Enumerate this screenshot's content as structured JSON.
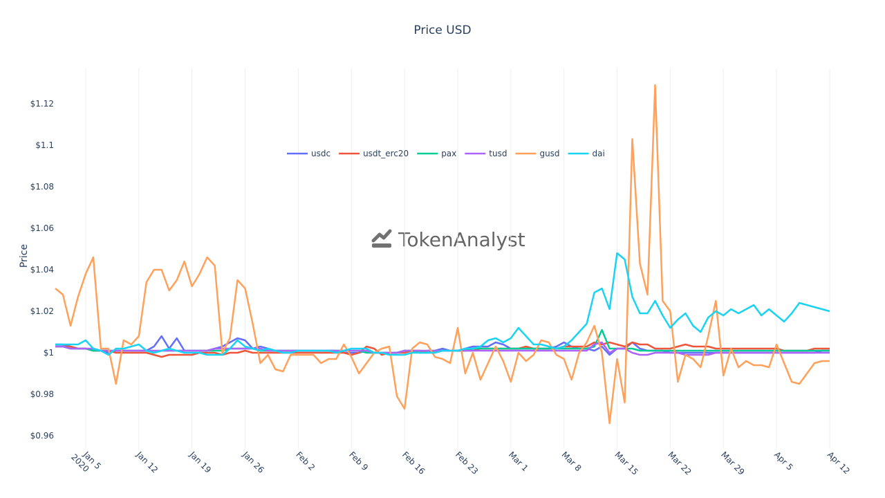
{
  "chart_data": {
    "type": "line",
    "title": "Price USD",
    "ylabel": "Price",
    "watermark": "TokenAnalyst",
    "x": [
      "2020-01-01",
      "2020-01-02",
      "2020-01-03",
      "2020-01-04",
      "2020-01-05",
      "2020-01-06",
      "2020-01-07",
      "2020-01-08",
      "2020-01-09",
      "2020-01-10",
      "2020-01-11",
      "2020-01-12",
      "2020-01-13",
      "2020-01-14",
      "2020-01-15",
      "2020-01-16",
      "2020-01-17",
      "2020-01-18",
      "2020-01-19",
      "2020-01-20",
      "2020-01-21",
      "2020-01-22",
      "2020-01-23",
      "2020-01-24",
      "2020-01-25",
      "2020-01-26",
      "2020-01-27",
      "2020-01-28",
      "2020-01-29",
      "2020-01-30",
      "2020-01-31",
      "2020-02-01",
      "2020-02-02",
      "2020-02-03",
      "2020-02-04",
      "2020-02-05",
      "2020-02-06",
      "2020-02-07",
      "2020-02-08",
      "2020-02-09",
      "2020-02-10",
      "2020-02-11",
      "2020-02-12",
      "2020-02-13",
      "2020-02-14",
      "2020-02-15",
      "2020-02-16",
      "2020-02-17",
      "2020-02-18",
      "2020-02-19",
      "2020-02-20",
      "2020-02-21",
      "2020-02-22",
      "2020-02-23",
      "2020-02-24",
      "2020-02-25",
      "2020-02-26",
      "2020-02-27",
      "2020-02-28",
      "2020-02-29",
      "2020-03-01",
      "2020-03-02",
      "2020-03-03",
      "2020-03-04",
      "2020-03-05",
      "2020-03-06",
      "2020-03-07",
      "2020-03-08",
      "2020-03-09",
      "2020-03-10",
      "2020-03-11",
      "2020-03-12",
      "2020-03-13",
      "2020-03-14",
      "2020-03-15",
      "2020-03-16",
      "2020-03-17",
      "2020-03-18",
      "2020-03-19",
      "2020-03-20",
      "2020-03-21",
      "2020-03-22",
      "2020-03-23",
      "2020-03-24",
      "2020-03-25",
      "2020-03-26",
      "2020-03-27",
      "2020-03-28",
      "2020-03-29",
      "2020-03-30",
      "2020-03-31",
      "2020-04-01",
      "2020-04-02",
      "2020-04-03",
      "2020-04-04",
      "2020-04-05",
      "2020-04-06",
      "2020-04-07",
      "2020-04-08",
      "2020-04-09",
      "2020-04-10",
      "2020-04-11",
      "2020-04-12"
    ],
    "series": [
      {
        "name": "usdc",
        "color": "#636efa",
        "values": [
          1.004,
          1.004,
          1.003,
          1.002,
          1.002,
          1.001,
          1.001,
          1.0,
          1.001,
          1.001,
          1.001,
          1.001,
          1.001,
          1.003,
          1.008,
          1.002,
          1.007,
          1.001,
          1.001,
          1.001,
          1.001,
          1.002,
          1.003,
          1.005,
          1.007,
          1.006,
          1.002,
          1.003,
          1.002,
          1.001,
          1.001,
          1.001,
          1.001,
          1.001,
          1.001,
          1.001,
          1.001,
          1.001,
          1.0,
          1.0,
          1.0,
          1.001,
          1.0,
          1.0,
          1.0,
          1.0,
          1.001,
          1.001,
          1.0,
          1.001,
          1.001,
          1.002,
          1.001,
          1.001,
          1.002,
          1.003,
          1.003,
          1.003,
          1.005,
          1.004,
          1.002,
          1.002,
          1.002,
          1.002,
          1.002,
          1.002,
          1.003,
          1.005,
          1.003,
          1.002,
          1.002,
          1.001,
          1.003,
          0.999,
          1.002,
          1.002,
          1.005,
          1.002,
          1.001,
          1.001,
          1.001,
          1.0,
          1.0,
          1.0,
          1.0,
          1.0,
          1.0,
          1.0,
          1.0,
          1.0,
          1.0,
          1.0,
          1.0,
          1.0,
          1.0,
          1.0,
          1.0,
          1.0,
          1.0,
          1.0,
          1.0,
          1.001,
          1.001
        ]
      },
      {
        "name": "usdt_erc20",
        "color": "#ef553b",
        "values": [
          1.003,
          1.003,
          1.003,
          1.002,
          1.002,
          1.001,
          1.001,
          1.001,
          1.0,
          1.0,
          1.0,
          1.0,
          1.0,
          0.999,
          0.998,
          0.999,
          0.999,
          0.999,
          0.999,
          1.0,
          1.0,
          1.0,
          0.999,
          1.0,
          1.0,
          1.001,
          1.0,
          1.0,
          1.0,
          1.0,
          1.0,
          1.0,
          1.0,
          1.0,
          1.0,
          1.0,
          1.0,
          1.0,
          1.0,
          0.999,
          1.0,
          1.003,
          1.002,
          0.999,
          1.0,
          1.0,
          1.0,
          1.001,
          1.001,
          1.0,
          1.0,
          1.001,
          1.001,
          1.001,
          1.001,
          1.001,
          1.002,
          1.002,
          1.002,
          1.002,
          1.002,
          1.002,
          1.003,
          1.002,
          1.002,
          1.002,
          1.002,
          1.003,
          1.003,
          1.003,
          1.003,
          1.005,
          1.004,
          1.005,
          1.004,
          1.003,
          1.005,
          1.004,
          1.004,
          1.002,
          1.002,
          1.002,
          1.003,
          1.004,
          1.003,
          1.003,
          1.003,
          1.002,
          1.002,
          1.002,
          1.002,
          1.002,
          1.002,
          1.002,
          1.002,
          1.002,
          1.001,
          1.001,
          1.001,
          1.001,
          1.002,
          1.002,
          1.002
        ]
      },
      {
        "name": "pax",
        "color": "#00cc96",
        "values": [
          1.003,
          1.003,
          1.002,
          1.002,
          1.002,
          1.001,
          1.001,
          1.001,
          1.001,
          1.001,
          1.001,
          1.001,
          1.001,
          1.0,
          1.001,
          1.001,
          1.001,
          1.001,
          1.001,
          1.001,
          1.001,
          1.001,
          1.001,
          1.002,
          1.002,
          1.002,
          1.002,
          1.001,
          1.001,
          1.001,
          1.001,
          1.001,
          1.001,
          1.001,
          1.001,
          1.001,
          1.001,
          1.001,
          1.001,
          1.001,
          1.001,
          1.0,
          1.0,
          1.0,
          1.0,
          1.0,
          1.001,
          1.001,
          1.0,
          1.0,
          1.001,
          1.001,
          1.001,
          1.001,
          1.001,
          1.002,
          1.002,
          1.002,
          1.002,
          1.002,
          1.002,
          1.002,
          1.002,
          1.002,
          1.002,
          1.002,
          1.002,
          1.002,
          1.002,
          1.002,
          1.002,
          1.003,
          1.011,
          1.002,
          1.002,
          1.002,
          1.002,
          1.001,
          1.001,
          1.001,
          1.001,
          1.001,
          1.001,
          1.001,
          1.001,
          1.001,
          1.001,
          1.001,
          1.001,
          1.001,
          1.001,
          1.001,
          1.001,
          1.001,
          1.001,
          1.001,
          1.001,
          1.001,
          1.001,
          1.001,
          1.001,
          1.001,
          1.001
        ]
      },
      {
        "name": "tusd",
        "color": "#ab63fa",
        "values": [
          1.003,
          1.003,
          1.002,
          1.002,
          1.002,
          1.002,
          1.001,
          1.001,
          1.001,
          1.001,
          1.001,
          1.001,
          1.001,
          1.001,
          1.001,
          1.001,
          1.001,
          1.001,
          1.001,
          1.001,
          1.001,
          1.002,
          1.002,
          1.002,
          1.002,
          1.002,
          1.002,
          1.002,
          1.001,
          1.001,
          1.001,
          1.001,
          1.001,
          1.001,
          1.001,
          1.001,
          1.001,
          1.001,
          1.001,
          1.001,
          1.001,
          1.001,
          1.0,
          1.0,
          1.0,
          1.0,
          1.001,
          1.001,
          1.001,
          1.001,
          1.001,
          1.001,
          1.001,
          1.001,
          1.001,
          1.001,
          1.001,
          1.001,
          1.001,
          1.001,
          1.001,
          1.001,
          1.001,
          1.001,
          1.001,
          1.001,
          1.001,
          1.001,
          1.001,
          1.001,
          1.001,
          1.004,
          1.005,
          1.0,
          1.002,
          1.002,
          1.0,
          0.999,
          0.999,
          1.0,
          1.0,
          1.0,
          1.0,
          0.999,
          0.999,
          0.999,
          0.999,
          1.0,
          1.0,
          1.0,
          1.0,
          1.0,
          1.0,
          1.0,
          1.0,
          1.0,
          1.0,
          1.0,
          1.0,
          1.0,
          1.0,
          1.0,
          1.0
        ]
      },
      {
        "name": "gusd",
        "color": "#ffa15a",
        "values": [
          1.031,
          1.028,
          1.013,
          1.027,
          1.038,
          1.046,
          1.002,
          1.002,
          0.985,
          1.006,
          1.004,
          1.008,
          1.034,
          1.04,
          1.04,
          1.03,
          1.035,
          1.044,
          1.032,
          1.038,
          1.046,
          1.042,
          1.0,
          1.007,
          1.035,
          1.031,
          1.014,
          0.995,
          0.999,
          0.992,
          0.991,
          0.999,
          0.999,
          0.999,
          0.999,
          0.995,
          0.997,
          0.997,
          1.004,
          0.998,
          0.99,
          0.995,
          1.0,
          1.002,
          1.003,
          0.979,
          0.973,
          1.002,
          1.005,
          1.004,
          0.998,
          0.997,
          0.995,
          1.012,
          0.99,
          1.0,
          0.987,
          0.995,
          1.003,
          0.996,
          0.986,
          1.0,
          0.996,
          0.999,
          1.006,
          1.005,
          0.999,
          0.997,
          0.987,
          1.0,
          1.005,
          1.013,
          1.0,
          0.966,
          0.997,
          0.976,
          1.103,
          1.043,
          1.028,
          1.129,
          1.025,
          1.02,
          0.986,
          0.999,
          0.997,
          0.993,
          1.008,
          1.025,
          0.989,
          1.002,
          0.993,
          0.996,
          0.994,
          0.994,
          0.993,
          1.004,
          0.995,
          0.986,
          0.985,
          0.99,
          0.995,
          0.996,
          0.996
        ]
      },
      {
        "name": "dai",
        "color": "#19d3f3",
        "values": [
          1.004,
          1.004,
          1.004,
          1.004,
          1.006,
          1.002,
          1.001,
          0.999,
          1.002,
          1.002,
          1.003,
          1.004,
          1.001,
          1.0,
          1.001,
          1.002,
          1.001,
          1.0,
          1.0,
          1.0,
          0.999,
          0.999,
          0.999,
          1.002,
          1.006,
          1.003,
          1.002,
          1.001,
          1.002,
          1.001,
          1.0,
          1.0,
          1.001,
          1.001,
          1.001,
          1.001,
          1.001,
          1.0,
          1.001,
          1.002,
          1.002,
          1.002,
          1.0,
          1.0,
          0.999,
          0.999,
          0.999,
          1.0,
          1.0,
          1.0,
          1.0,
          1.001,
          1.001,
          1.001,
          1.002,
          1.002,
          1.003,
          1.006,
          1.007,
          1.005,
          1.007,
          1.012,
          1.008,
          1.004,
          1.004,
          1.003,
          1.002,
          1.003,
          1.006,
          1.01,
          1.014,
          1.029,
          1.031,
          1.021,
          1.048,
          1.045,
          1.027,
          1.019,
          1.019,
          1.025,
          1.018,
          1.012,
          1.016,
          1.019,
          1.013,
          1.01,
          1.017,
          1.02,
          1.018,
          1.021,
          1.019,
          1.021,
          1.023,
          1.018,
          1.021,
          1.018,
          1.015,
          1.019,
          1.024,
          1.023,
          1.022,
          1.021,
          1.02
        ]
      }
    ],
    "xlim": [
      "2020-01-01",
      "2020-04-12"
    ],
    "xticks": [
      {
        "value": "2020-01-05",
        "label": "Jan 5\n2020"
      },
      {
        "value": "2020-01-12",
        "label": "Jan 12"
      },
      {
        "value": "2020-01-19",
        "label": "Jan 19"
      },
      {
        "value": "2020-01-26",
        "label": "Jan 26"
      },
      {
        "value": "2020-02-02",
        "label": "Feb 2"
      },
      {
        "value": "2020-02-09",
        "label": "Feb 9"
      },
      {
        "value": "2020-02-16",
        "label": "Feb 16"
      },
      {
        "value": "2020-02-23",
        "label": "Feb 23"
      },
      {
        "value": "2020-03-01",
        "label": "Mar 1"
      },
      {
        "value": "2020-03-08",
        "label": "Mar 8"
      },
      {
        "value": "2020-03-15",
        "label": "Mar 15"
      },
      {
        "value": "2020-03-22",
        "label": "Mar 22"
      },
      {
        "value": "2020-03-29",
        "label": "Mar 29"
      },
      {
        "value": "2020-04-05",
        "label": "Apr 5"
      },
      {
        "value": "2020-04-12",
        "label": "Apr 12"
      }
    ],
    "ylim": [
      0.954,
      1.137
    ],
    "yticks": [
      {
        "value": 0.96,
        "label": "$0.96"
      },
      {
        "value": 0.98,
        "label": "$0.98"
      },
      {
        "value": 1,
        "label": "$1"
      },
      {
        "value": 1.02,
        "label": "$1.02"
      },
      {
        "value": 1.04,
        "label": "$1.04"
      },
      {
        "value": 1.06,
        "label": "$1.06"
      },
      {
        "value": 1.08,
        "label": "$1.08"
      },
      {
        "value": 1.1,
        "label": "$1.1"
      },
      {
        "value": 1.12,
        "label": "$1.12"
      }
    ],
    "xgrid": true,
    "ygrid": false,
    "legend": "top"
  }
}
